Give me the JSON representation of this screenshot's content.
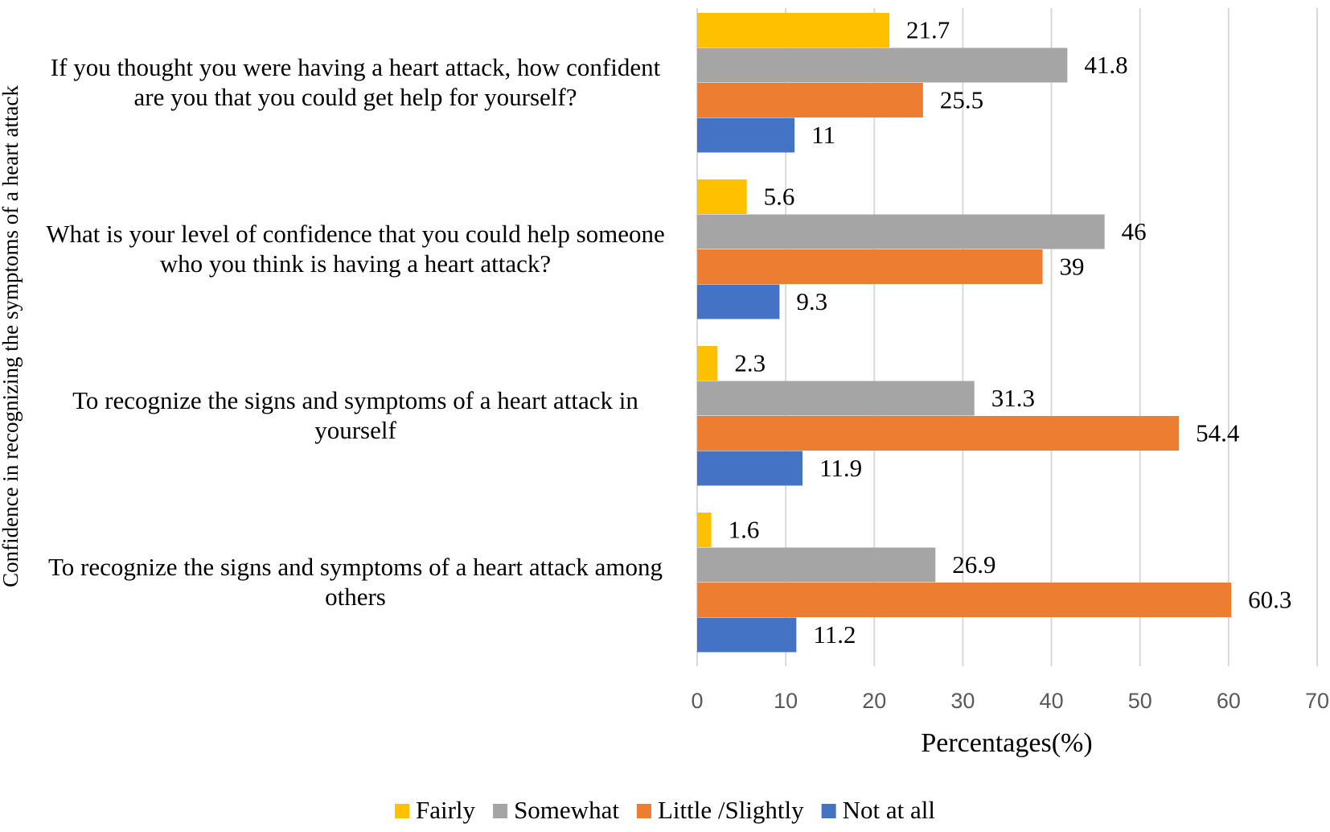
{
  "chart_data": {
    "type": "bar",
    "orientation": "horizontal",
    "ylabel": "Confidence in recognizing the symptoms of a heart attack",
    "xlabel": "Percentages(%)",
    "xlim": [
      0,
      70
    ],
    "xticks": [
      0,
      10,
      20,
      30,
      40,
      50,
      60,
      70
    ],
    "grid": true,
    "legend_position": "bottom",
    "categories": [
      [
        "If you thought you were having a heart attack, how confident",
        "are you that you could get help for yourself?"
      ],
      [
        "What is your level of confidence that you could help someone",
        "who you think is having a heart attack?"
      ],
      [
        "To recognize the signs and symptoms of a heart attack in",
        "yourself"
      ],
      [
        "To recognize the signs and symptoms of a heart attack among",
        "others"
      ]
    ],
    "series": [
      {
        "name": "Fairly",
        "color": "#FFC000",
        "values": [
          21.7,
          5.6,
          2.3,
          1.6
        ],
        "labels": [
          "21.7",
          "5.6",
          "2.3",
          "1.6"
        ]
      },
      {
        "name": "Somewhat",
        "color": "#A5A5A5",
        "values": [
          41.8,
          46,
          31.3,
          26.9
        ],
        "labels": [
          "41.8",
          "46",
          "31.3",
          "26.9"
        ]
      },
      {
        "name": "Little /Slightly",
        "color": "#ED7D31",
        "values": [
          25.5,
          39,
          54.4,
          60.3
        ],
        "labels": [
          "25.5",
          "39",
          "54.4",
          "60.3"
        ]
      },
      {
        "name": "Not at all",
        "color": "#4472C4",
        "values": [
          11,
          9.3,
          11.9,
          11.2
        ],
        "labels": [
          "11",
          "9.3",
          "11.9",
          "11.2"
        ]
      }
    ]
  }
}
